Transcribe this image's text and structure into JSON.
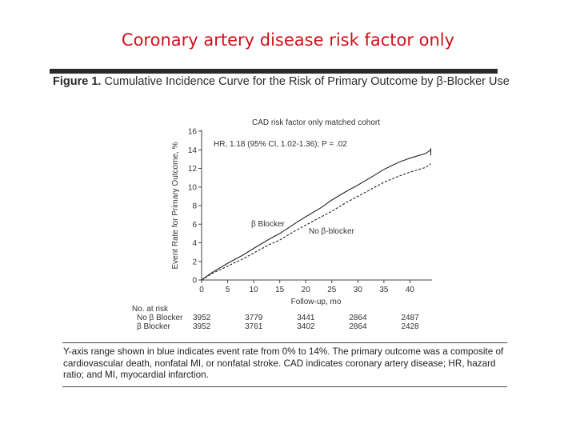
{
  "slide": {
    "title": "Coronary artery disease risk factor only"
  },
  "figure": {
    "label": "Figure 1.",
    "title": "Cumulative Incidence Curve for the Risk of Primary Outcome by β-Blocker Use",
    "caption": "Y-axis range shown in blue indicates event rate from 0% to 14%. The primary outcome was a composite of cardiovascular death, nonfatal MI, or nonfatal stroke. CAD indicates coronary artery disease; HR, hazard ratio; and MI, myocardial infarction."
  },
  "chart_data": {
    "type": "line",
    "title": "CAD risk factor only matched cohort",
    "annotation": "HR, 1.18 (95% CI, 1.02-1.36); P = .02",
    "xlabel": "Follow-up, mo",
    "ylabel": "Event Rate for Primary Outcome, %",
    "xlim": [
      0,
      45
    ],
    "ylim": [
      0,
      16
    ],
    "xticks": [
      0,
      5,
      10,
      15,
      20,
      25,
      30,
      35,
      40
    ],
    "yticks": [
      0,
      2,
      4,
      6,
      8,
      10,
      12,
      14,
      16
    ],
    "series": [
      {
        "name": "β Blocker",
        "line_style": "solid",
        "x": [
          0,
          2,
          5,
          8,
          10,
          13,
          15,
          18,
          20,
          23,
          25,
          28,
          30,
          33,
          35,
          38,
          40,
          43,
          44
        ],
        "y": [
          0,
          0.8,
          1.8,
          2.7,
          3.4,
          4.4,
          5.0,
          6.1,
          6.8,
          7.8,
          8.6,
          9.6,
          10.2,
          11.2,
          11.9,
          12.7,
          13.1,
          13.6,
          14.0
        ]
      },
      {
        "name": "No β-blocker",
        "line_style": "dashed",
        "x": [
          0,
          2,
          5,
          8,
          10,
          13,
          15,
          18,
          20,
          23,
          25,
          28,
          30,
          33,
          35,
          38,
          40,
          43,
          44
        ],
        "y": [
          0,
          0.7,
          1.5,
          2.3,
          2.9,
          3.8,
          4.3,
          5.3,
          5.9,
          6.8,
          7.4,
          8.4,
          9.0,
          9.9,
          10.5,
          11.2,
          11.6,
          12.1,
          12.5
        ]
      }
    ],
    "risk_table": {
      "header": "No. at risk",
      "times": [
        0,
        10,
        20,
        30,
        40
      ],
      "rows": [
        {
          "label": "No β Blocker",
          "counts": [
            "3952",
            "3779",
            "3441",
            "2864",
            "2487"
          ]
        },
        {
          "label": "β Blocker",
          "counts": [
            "3952",
            "3761",
            "3402",
            "2864",
            "2428"
          ]
        }
      ]
    }
  }
}
